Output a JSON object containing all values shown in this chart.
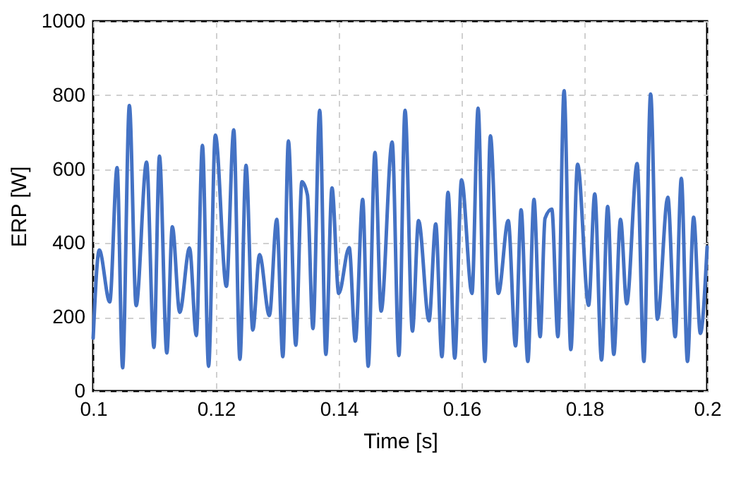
{
  "chart_data": {
    "type": "line",
    "xlabel": "Time [s]",
    "ylabel": "ERP [W]",
    "xlim": [
      0.1,
      0.2
    ],
    "ylim": [
      0,
      1000
    ],
    "xticks": [
      0.1,
      0.12,
      0.14,
      0.16,
      0.18,
      0.2
    ],
    "yticks": [
      0,
      200,
      400,
      600,
      800,
      1000
    ],
    "grid": true,
    "legend": false,
    "marker": "none",
    "line_style": "solid",
    "series": [
      {
        "color": "#4472c4",
        "x": [
          0.1,
          0.101,
          0.1027,
          0.1039,
          0.1048,
          0.1059,
          0.107,
          0.1087,
          0.1099,
          0.1108,
          0.112,
          0.1129,
          0.1141,
          0.1157,
          0.1168,
          0.1178,
          0.1188,
          0.1199,
          0.1217,
          0.1229,
          0.1239,
          0.1249,
          0.126,
          0.1271,
          0.1287,
          0.1299,
          0.1309,
          0.1318,
          0.133,
          0.134,
          0.1349,
          0.1358,
          0.1369,
          0.1379,
          0.1389,
          0.14,
          0.1417,
          0.1427,
          0.1439,
          0.1448,
          0.1459,
          0.1469,
          0.1487,
          0.1498,
          0.1508,
          0.152,
          0.153,
          0.1547,
          0.1558,
          0.1568,
          0.1578,
          0.1589,
          0.16,
          0.1617,
          0.1627,
          0.1638,
          0.1647,
          0.166,
          0.1676,
          0.1688,
          0.1697,
          0.1708,
          0.1718,
          0.1728,
          0.1736,
          0.1747,
          0.1757,
          0.1767,
          0.1778,
          0.1789,
          0.1807,
          0.1817,
          0.1828,
          0.1838,
          0.1848,
          0.1859,
          0.1869,
          0.1886,
          0.1897,
          0.1908,
          0.1919,
          0.1936,
          0.1948,
          0.1958,
          0.1968,
          0.1978,
          0.1989,
          0.2
        ],
        "values": [
          143,
          381,
          241,
          604,
          63,
          772,
          231,
          619,
          118,
          635,
          103,
          444,
          213,
          387,
          150,
          664,
          67,
          692,
          283,
          706,
          86,
          610,
          165,
          369,
          204,
          464,
          93,
          676,
          124,
          566,
          530,
          169,
          759,
          99,
          549,
          264,
          388,
          135,
          518,
          67,
          645,
          216,
          673,
          96,
          759,
          162,
          461,
          190,
          452,
          93,
          537,
          89,
          571,
          264,
          765,
          80,
          690,
          264,
          461,
          122,
          490,
          80,
          518,
          147,
          467,
          492,
          147,
          812,
          112,
          613,
          232,
          533,
          84,
          499,
          99,
          464,
          236,
          615,
          80,
          803,
          194,
          524,
          147,
          575,
          80,
          470,
          156,
          390
        ]
      }
    ]
  }
}
